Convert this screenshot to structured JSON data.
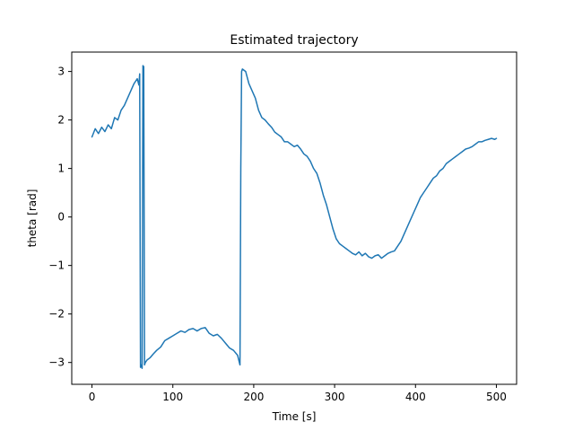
{
  "chart_data": {
    "type": "line",
    "title": "Estimated trajectory",
    "xlabel": "Time [s]",
    "ylabel": "theta [rad]",
    "xlim": [
      -25,
      525
    ],
    "ylim": [
      -3.45,
      3.4
    ],
    "xticks": [
      0,
      100,
      200,
      300,
      400,
      500
    ],
    "yticks": [
      -3,
      -2,
      -1,
      0,
      1,
      2,
      3
    ],
    "grid": false,
    "series": [
      {
        "color": "#1f77b4",
        "x": [
          0,
          4,
          8,
          12,
          16,
          20,
          24,
          28,
          32,
          36,
          40,
          44,
          48,
          52,
          56,
          58,
          59,
          60,
          61,
          62,
          63,
          64,
          65,
          66,
          68,
          72,
          76,
          80,
          85,
          90,
          95,
          100,
          105,
          110,
          115,
          120,
          125,
          130,
          135,
          140,
          145,
          150,
          155,
          160,
          165,
          170,
          175,
          180,
          183,
          184,
          185,
          186,
          190,
          194,
          198,
          202,
          206,
          210,
          214,
          218,
          222,
          226,
          230,
          234,
          238,
          242,
          246,
          250,
          254,
          258,
          262,
          266,
          270,
          274,
          278,
          282,
          286,
          290,
          294,
          298,
          302,
          306,
          310,
          314,
          318,
          322,
          326,
          330,
          334,
          338,
          342,
          346,
          350,
          354,
          358,
          362,
          366,
          370,
          374,
          378,
          382,
          386,
          390,
          394,
          398,
          402,
          406,
          410,
          414,
          418,
          422,
          426,
          430,
          434,
          438,
          442,
          446,
          450,
          454,
          458,
          462,
          466,
          470,
          474,
          478,
          482,
          486,
          490,
          494,
          498,
          500
        ],
        "y": [
          1.65,
          1.82,
          1.72,
          1.85,
          1.76,
          1.9,
          1.82,
          2.05,
          2.0,
          2.2,
          2.3,
          2.45,
          2.6,
          2.75,
          2.85,
          2.72,
          2.95,
          -3.1,
          -3.05,
          -3.12,
          3.12,
          3.1,
          -3.05,
          -3.0,
          -2.95,
          -2.9,
          -2.82,
          -2.75,
          -2.68,
          -2.55,
          -2.5,
          -2.45,
          -2.4,
          -2.35,
          -2.38,
          -2.32,
          -2.3,
          -2.35,
          -2.3,
          -2.28,
          -2.4,
          -2.45,
          -2.42,
          -2.5,
          -2.6,
          -2.7,
          -2.75,
          -2.85,
          -3.05,
          1.0,
          3.0,
          3.05,
          3.0,
          2.75,
          2.6,
          2.45,
          2.2,
          2.05,
          2.0,
          1.92,
          1.85,
          1.75,
          1.7,
          1.65,
          1.55,
          1.55,
          1.5,
          1.45,
          1.48,
          1.4,
          1.3,
          1.25,
          1.15,
          1.0,
          0.9,
          0.7,
          0.45,
          0.25,
          0.0,
          -0.25,
          -0.45,
          -0.55,
          -0.6,
          -0.65,
          -0.7,
          -0.75,
          -0.78,
          -0.72,
          -0.8,
          -0.75,
          -0.82,
          -0.85,
          -0.8,
          -0.78,
          -0.85,
          -0.8,
          -0.75,
          -0.72,
          -0.7,
          -0.6,
          -0.5,
          -0.35,
          -0.2,
          -0.05,
          0.1,
          0.25,
          0.4,
          0.5,
          0.6,
          0.7,
          0.8,
          0.85,
          0.95,
          1.0,
          1.1,
          1.15,
          1.2,
          1.25,
          1.3,
          1.35,
          1.4,
          1.42,
          1.45,
          1.5,
          1.55,
          1.55,
          1.58,
          1.6,
          1.62,
          1.6,
          1.62
        ]
      }
    ]
  }
}
